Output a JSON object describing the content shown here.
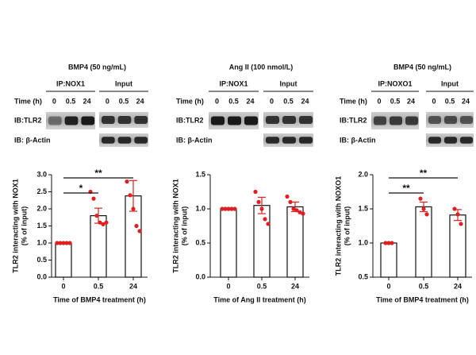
{
  "blots": [
    {
      "treatment": "BMP4 (50 ng/mL)",
      "ip": "IP:NOX1",
      "input": "Input",
      "time_label": "Time (h)",
      "ip_times": [
        "0",
        "0.5",
        "24"
      ],
      "input_times": [
        "0",
        "0.5",
        "24"
      ],
      "ib_target": "IB:TLR2",
      "ib_loading": "IB: β-Actin"
    },
    {
      "treatment": "Ang II (100 nmol/L)",
      "ip": "IP:NOX1",
      "input": "Input",
      "time_label": "Time (h)",
      "ip_times": [
        "0",
        "0.5",
        "24"
      ],
      "input_times": [
        "0",
        "0.5",
        "24"
      ],
      "ib_target": "IB:TLR2",
      "ib_loading": "IB: β-Actin"
    },
    {
      "treatment": "BMP4 (50 ng/mL)",
      "ip": "IP:NOXO1",
      "input": "Input",
      "time_label": "Time (h)",
      "ip_times": [
        "0",
        "0.5",
        "24"
      ],
      "input_times": [
        "0",
        "0.5",
        "24"
      ],
      "ib_target": "IB:TLR2",
      "ib_loading": "IB: β-Actin"
    }
  ],
  "chart_data": [
    {
      "type": "bar",
      "categories": [
        "0",
        "0.5",
        "24"
      ],
      "values": [
        1.0,
        1.8,
        2.38
      ],
      "errors": [
        0,
        0.22,
        0.45
      ],
      "points": [
        [
          1,
          1,
          1,
          1,
          1
        ],
        [
          2.5,
          2.3,
          1.8,
          1.6,
          1.55,
          1.6
        ],
        [
          2.8,
          2.4,
          2.0,
          1.5,
          1.35
        ]
      ],
      "ylabel": [
        "TLR2 interacting with NOX1",
        "(% of input)"
      ],
      "xlabel": "Time of BMP4 treatment (h)",
      "ylim": [
        0,
        3
      ],
      "yticks": [
        {
          "value": 0,
          "label": "0.0"
        },
        0.5,
        {
          "value": 1,
          "label": "1.0"
        },
        1.5,
        {
          "value": 2,
          "label": "2.0"
        },
        2.5,
        {
          "value": 3,
          "label": "3.0"
        }
      ],
      "significance": [
        {
          "label": "*",
          "between": [
            "0",
            "0.5"
          ]
        },
        {
          "label": "**",
          "between": [
            "0",
            "24"
          ]
        }
      ],
      "color": "#e02020"
    },
    {
      "type": "bar",
      "categories": [
        "0",
        "0.5",
        "24"
      ],
      "values": [
        1.0,
        1.05,
        1.03
      ],
      "errors": [
        0,
        0.12,
        0.07
      ],
      "points": [
        [
          1,
          1,
          1,
          1,
          1
        ],
        [
          1.25,
          1.1,
          1.0,
          0.85,
          0.78
        ],
        [
          1.18,
          1.1,
          1.0,
          0.98,
          0.95,
          0.93
        ]
      ],
      "ylabel": [
        "TLR2 interacting with NOX1",
        "(% of input)"
      ],
      "xlabel": "Time of Ang II treatment (h)",
      "ylim": [
        0,
        1.5
      ],
      "yticks": [
        {
          "value": 0,
          "label": "0.0"
        },
        0.5,
        {
          "value": 1,
          "label": "1.0"
        },
        1.5
      ],
      "significance": [],
      "color": "#e02020"
    },
    {
      "type": "bar",
      "categories": [
        "0",
        "0.5",
        "24"
      ],
      "values": [
        1.0,
        1.53,
        1.41
      ],
      "errors": [
        0,
        0.07,
        0.08
      ],
      "points": [
        [
          1,
          1,
          1
        ],
        [
          1.65,
          1.5,
          1.42
        ],
        [
          1.5,
          1.42,
          1.28
        ]
      ],
      "ylabel": [
        "TLR2 interacting with NOXO1",
        "(% of input)"
      ],
      "xlabel": "Time of BMP4 treatment (h)",
      "ylim": [
        0.5,
        2
      ],
      "yticks": [
        0.5,
        {
          "value": 1,
          "label": "1.0"
        },
        1.5,
        {
          "value": 2,
          "label": "2.0"
        }
      ],
      "significance": [
        {
          "label": "**",
          "between": [
            "0",
            "0.5"
          ]
        },
        {
          "label": "**",
          "between": [
            "0",
            "24"
          ]
        }
      ],
      "color": "#e02020"
    }
  ]
}
